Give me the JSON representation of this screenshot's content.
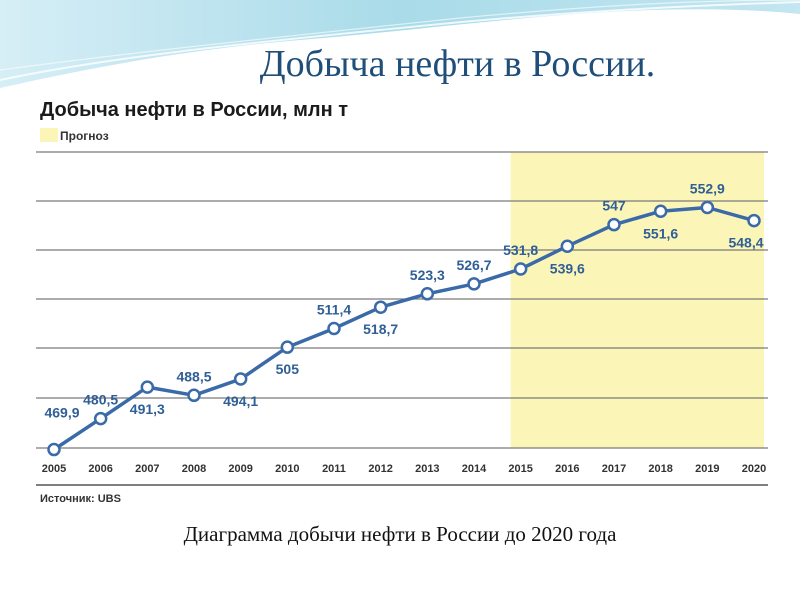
{
  "slide": {
    "title": "Добыча нефти в России.",
    "caption": "Диаграмма добычи нефти в России до 2020 года"
  },
  "colors": {
    "line": "#3a6aa8",
    "label": "#2f5f96",
    "forecast_fill": "#fbf6b8",
    "grid": "#7a7a7a",
    "title_blue": "#1f4e79"
  },
  "chart_data": {
    "type": "line",
    "title": "Добыча нефти в России, млн т",
    "legend": "Прогноз",
    "source": "Источник: UBS",
    "x": [
      "2005",
      "2006",
      "2007",
      "2008",
      "2009",
      "2010",
      "2011",
      "2012",
      "2013",
      "2014",
      "2015",
      "2016",
      "2017",
      "2018",
      "2019",
      "2020"
    ],
    "series": [
      {
        "values": [
          469.9,
          480.5,
          491.3,
          488.5,
          494.1,
          505,
          511.4,
          518.7,
          523.3,
          526.7,
          531.8,
          539.6,
          547,
          551.6,
          552.9,
          548.4
        ],
        "labels": [
          "469,9",
          "480,5",
          "491,3",
          "488,5",
          "494,1",
          "505",
          "511,4",
          "518,7",
          "523,3",
          "526,7",
          "531,8",
          "539,6",
          "547",
          "551,6",
          "552,9",
          "548,4"
        ]
      }
    ],
    "forecast_range": [
      "2015",
      "2020"
    ],
    "ylim": [
      455,
      575
    ],
    "grid": true
  }
}
